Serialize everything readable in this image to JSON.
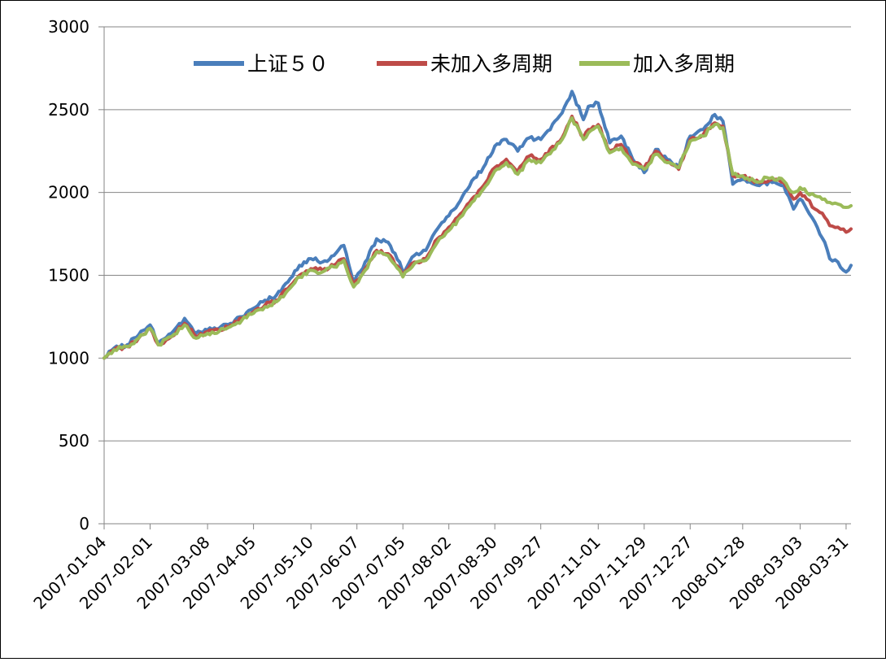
{
  "chart_data": {
    "type": "line",
    "title": "",
    "xlabel": "",
    "ylabel": "",
    "ylim": [
      0,
      3000
    ],
    "yticks": [
      0,
      500,
      1000,
      1500,
      2000,
      2500,
      3000
    ],
    "xlim": [
      "2007-01-04",
      "2008-04-03"
    ],
    "xticks": [
      "2007-01-04",
      "2007-02-01",
      "2007-03-08",
      "2007-04-05",
      "2007-05-10",
      "2007-06-07",
      "2007-07-05",
      "2007-08-02",
      "2007-08-30",
      "2007-09-27",
      "2007-11-01",
      "2007-11-29",
      "2007-12-27",
      "2008-01-28",
      "2008-03-03",
      "2008-03-31"
    ],
    "grid": "horizontal",
    "legend_position": "top",
    "series": [
      {
        "name": "上证５０",
        "color": "#4a7ebb",
        "points": [
          [
            "2007-01-04",
            1000
          ],
          [
            "2007-01-10",
            1060
          ],
          [
            "2007-01-18",
            1080
          ],
          [
            "2007-01-25",
            1140
          ],
          [
            "2007-02-01",
            1200
          ],
          [
            "2007-02-06",
            1090
          ],
          [
            "2007-02-14",
            1150
          ],
          [
            "2007-02-22",
            1240
          ],
          [
            "2007-03-01",
            1150
          ],
          [
            "2007-03-08",
            1170
          ],
          [
            "2007-03-15",
            1180
          ],
          [
            "2007-03-22",
            1210
          ],
          [
            "2007-03-29",
            1250
          ],
          [
            "2007-04-05",
            1300
          ],
          [
            "2007-04-12",
            1350
          ],
          [
            "2007-04-19",
            1380
          ],
          [
            "2007-04-26",
            1460
          ],
          [
            "2007-05-03",
            1560
          ],
          [
            "2007-05-10",
            1600
          ],
          [
            "2007-05-17",
            1580
          ],
          [
            "2007-05-24",
            1620
          ],
          [
            "2007-05-30",
            1680
          ],
          [
            "2007-06-05",
            1450
          ],
          [
            "2007-06-12",
            1580
          ],
          [
            "2007-06-19",
            1720
          ],
          [
            "2007-06-26",
            1700
          ],
          [
            "2007-07-03",
            1580
          ],
          [
            "2007-07-05",
            1520
          ],
          [
            "2007-07-12",
            1620
          ],
          [
            "2007-07-19",
            1650
          ],
          [
            "2007-07-26",
            1780
          ],
          [
            "2007-08-02",
            1860
          ],
          [
            "2007-08-09",
            1950
          ],
          [
            "2007-08-16",
            2070
          ],
          [
            "2007-08-23",
            2150
          ],
          [
            "2007-08-30",
            2280
          ],
          [
            "2007-09-06",
            2320
          ],
          [
            "2007-09-13",
            2250
          ],
          [
            "2007-09-20",
            2330
          ],
          [
            "2007-09-27",
            2320
          ],
          [
            "2007-10-10",
            2480
          ],
          [
            "2007-10-16",
            2610
          ],
          [
            "2007-10-23",
            2440
          ],
          [
            "2007-10-26",
            2520
          ],
          [
            "2007-11-01",
            2540
          ],
          [
            "2007-11-08",
            2300
          ],
          [
            "2007-11-15",
            2340
          ],
          [
            "2007-11-22",
            2200
          ],
          [
            "2007-11-29",
            2120
          ],
          [
            "2007-12-06",
            2260
          ],
          [
            "2007-12-13",
            2200
          ],
          [
            "2007-12-20",
            2150
          ],
          [
            "2007-12-27",
            2340
          ],
          [
            "2008-01-04",
            2380
          ],
          [
            "2008-01-11",
            2470
          ],
          [
            "2008-01-16",
            2430
          ],
          [
            "2008-01-22",
            2050
          ],
          [
            "2008-01-28",
            2080
          ],
          [
            "2008-02-04",
            2050
          ],
          [
            "2008-02-15",
            2060
          ],
          [
            "2008-02-22",
            2040
          ],
          [
            "2008-02-28",
            1900
          ],
          [
            "2008-03-03",
            1960
          ],
          [
            "2008-03-07",
            1900
          ],
          [
            "2008-03-12",
            1820
          ],
          [
            "2008-03-18",
            1700
          ],
          [
            "2008-03-21",
            1600
          ],
          [
            "2008-03-26",
            1580
          ],
          [
            "2008-03-31",
            1520
          ],
          [
            "2008-04-03",
            1560
          ]
        ]
      },
      {
        "name": "未加入多周期",
        "color": "#be4b48",
        "points": [
          [
            "2007-01-04",
            1000
          ],
          [
            "2007-01-10",
            1050
          ],
          [
            "2007-01-18",
            1070
          ],
          [
            "2007-01-25",
            1120
          ],
          [
            "2007-02-01",
            1180
          ],
          [
            "2007-02-06",
            1080
          ],
          [
            "2007-02-14",
            1130
          ],
          [
            "2007-02-22",
            1210
          ],
          [
            "2007-03-01",
            1130
          ],
          [
            "2007-03-08",
            1160
          ],
          [
            "2007-03-15",
            1170
          ],
          [
            "2007-03-22",
            1200
          ],
          [
            "2007-03-29",
            1240
          ],
          [
            "2007-04-05",
            1280
          ],
          [
            "2007-04-12",
            1320
          ],
          [
            "2007-04-19",
            1350
          ],
          [
            "2007-04-26",
            1420
          ],
          [
            "2007-05-03",
            1500
          ],
          [
            "2007-05-10",
            1540
          ],
          [
            "2007-05-17",
            1530
          ],
          [
            "2007-05-24",
            1560
          ],
          [
            "2007-05-30",
            1600
          ],
          [
            "2007-06-05",
            1440
          ],
          [
            "2007-06-12",
            1540
          ],
          [
            "2007-06-19",
            1650
          ],
          [
            "2007-06-26",
            1630
          ],
          [
            "2007-07-03",
            1540
          ],
          [
            "2007-07-05",
            1500
          ],
          [
            "2007-07-12",
            1580
          ],
          [
            "2007-07-19",
            1600
          ],
          [
            "2007-07-26",
            1720
          ],
          [
            "2007-08-02",
            1790
          ],
          [
            "2007-08-09",
            1870
          ],
          [
            "2007-08-16",
            1960
          ],
          [
            "2007-08-23",
            2040
          ],
          [
            "2007-08-30",
            2150
          ],
          [
            "2007-09-06",
            2200
          ],
          [
            "2007-09-13",
            2130
          ],
          [
            "2007-09-20",
            2220
          ],
          [
            "2007-09-27",
            2200
          ],
          [
            "2007-10-10",
            2330
          ],
          [
            "2007-10-16",
            2460
          ],
          [
            "2007-10-23",
            2330
          ],
          [
            "2007-10-26",
            2380
          ],
          [
            "2007-11-01",
            2410
          ],
          [
            "2007-11-08",
            2250
          ],
          [
            "2007-11-15",
            2290
          ],
          [
            "2007-11-22",
            2180
          ],
          [
            "2007-11-29",
            2150
          ],
          [
            "2007-12-06",
            2250
          ],
          [
            "2007-12-13",
            2190
          ],
          [
            "2007-12-20",
            2140
          ],
          [
            "2007-12-27",
            2320
          ],
          [
            "2008-01-04",
            2350
          ],
          [
            "2008-01-11",
            2420
          ],
          [
            "2008-01-16",
            2400
          ],
          [
            "2008-01-22",
            2100
          ],
          [
            "2008-01-28",
            2100
          ],
          [
            "2008-02-04",
            2060
          ],
          [
            "2008-02-15",
            2080
          ],
          [
            "2008-02-22",
            2060
          ],
          [
            "2008-02-28",
            1960
          ],
          [
            "2008-03-03",
            2000
          ],
          [
            "2008-03-07",
            1960
          ],
          [
            "2008-03-12",
            1900
          ],
          [
            "2008-03-18",
            1850
          ],
          [
            "2008-03-21",
            1800
          ],
          [
            "2008-03-26",
            1790
          ],
          [
            "2008-03-31",
            1760
          ],
          [
            "2008-04-03",
            1780
          ]
        ]
      },
      {
        "name": "加入多周期",
        "color": "#9bbb59",
        "points": [
          [
            "2007-01-04",
            1000
          ],
          [
            "2007-01-10",
            1050
          ],
          [
            "2007-01-18",
            1070
          ],
          [
            "2007-01-25",
            1120
          ],
          [
            "2007-02-01",
            1180
          ],
          [
            "2007-02-06",
            1080
          ],
          [
            "2007-02-14",
            1130
          ],
          [
            "2007-02-22",
            1200
          ],
          [
            "2007-03-01",
            1120
          ],
          [
            "2007-03-08",
            1150
          ],
          [
            "2007-03-15",
            1160
          ],
          [
            "2007-03-22",
            1190
          ],
          [
            "2007-03-29",
            1230
          ],
          [
            "2007-04-05",
            1270
          ],
          [
            "2007-04-12",
            1310
          ],
          [
            "2007-04-19",
            1340
          ],
          [
            "2007-04-26",
            1410
          ],
          [
            "2007-05-03",
            1490
          ],
          [
            "2007-05-10",
            1530
          ],
          [
            "2007-05-17",
            1520
          ],
          [
            "2007-05-24",
            1550
          ],
          [
            "2007-05-30",
            1590
          ],
          [
            "2007-06-05",
            1430
          ],
          [
            "2007-06-12",
            1530
          ],
          [
            "2007-06-19",
            1640
          ],
          [
            "2007-06-26",
            1620
          ],
          [
            "2007-07-03",
            1530
          ],
          [
            "2007-07-05",
            1490
          ],
          [
            "2007-07-12",
            1570
          ],
          [
            "2007-07-19",
            1590
          ],
          [
            "2007-07-26",
            1700
          ],
          [
            "2007-08-02",
            1770
          ],
          [
            "2007-08-09",
            1850
          ],
          [
            "2007-08-16",
            1940
          ],
          [
            "2007-08-23",
            2020
          ],
          [
            "2007-08-30",
            2130
          ],
          [
            "2007-09-06",
            2180
          ],
          [
            "2007-09-13",
            2110
          ],
          [
            "2007-09-20",
            2200
          ],
          [
            "2007-09-27",
            2180
          ],
          [
            "2007-10-10",
            2320
          ],
          [
            "2007-10-16",
            2450
          ],
          [
            "2007-10-23",
            2320
          ],
          [
            "2007-10-26",
            2360
          ],
          [
            "2007-11-01",
            2400
          ],
          [
            "2007-11-08",
            2240
          ],
          [
            "2007-11-15",
            2270
          ],
          [
            "2007-11-22",
            2170
          ],
          [
            "2007-11-29",
            2140
          ],
          [
            "2007-12-06",
            2230
          ],
          [
            "2007-12-13",
            2180
          ],
          [
            "2007-12-20",
            2150
          ],
          [
            "2007-12-27",
            2310
          ],
          [
            "2008-01-04",
            2340
          ],
          [
            "2008-01-11",
            2410
          ],
          [
            "2008-01-16",
            2390
          ],
          [
            "2008-01-22",
            2110
          ],
          [
            "2008-01-28",
            2100
          ],
          [
            "2008-02-04",
            2070
          ],
          [
            "2008-02-15",
            2090
          ],
          [
            "2008-02-22",
            2070
          ],
          [
            "2008-02-28",
            2000
          ],
          [
            "2008-03-03",
            2030
          ],
          [
            "2008-03-07",
            2000
          ],
          [
            "2008-03-12",
            1980
          ],
          [
            "2008-03-18",
            1960
          ],
          [
            "2008-03-21",
            1940
          ],
          [
            "2008-03-26",
            1930
          ],
          [
            "2008-03-31",
            1910
          ],
          [
            "2008-04-03",
            1920
          ]
        ]
      }
    ]
  }
}
